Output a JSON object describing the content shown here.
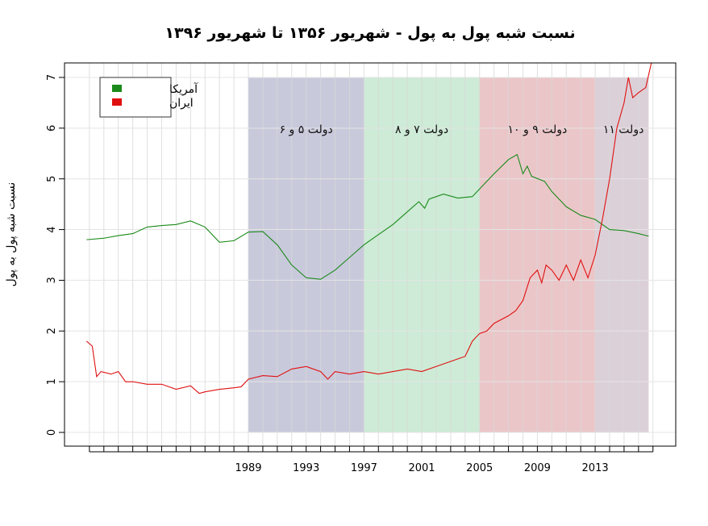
{
  "chart_data": {
    "type": "line",
    "title": "نسبت شبه پول به پول - شهریور ۱۳۵۶ تا شهریور ۱۳۹۶",
    "xlabel": "",
    "ylabel": "نسبت شبه پول به پول",
    "xlim": [
      1976.4,
      2018.6
    ],
    "ylim": [
      0,
      7
    ],
    "yticks": [
      0,
      1,
      2,
      3,
      4,
      5,
      6,
      7
    ],
    "xtick_labels": [
      "1989",
      "1993",
      "1997",
      "2001",
      "2005",
      "2009",
      "2013"
    ],
    "grid": true,
    "legend": {
      "placement": "top-left",
      "entries": [
        "آمریکا",
        "ایران"
      ]
    },
    "regions": [
      {
        "label": "دولت ۵ و ۶",
        "from": 1989,
        "to": 1997,
        "color": "#c9c9dc"
      },
      {
        "label": "دولت ۷ و ۸",
        "from": 1997,
        "to": 2005,
        "color": "#cdebd6"
      },
      {
        "label": "دولت ۹ و ۱۰",
        "from": 2005,
        "to": 2013,
        "color": "#ebc6c8"
      },
      {
        "label": "دولت ۱۱",
        "from": 2013,
        "to": 2016.7,
        "color": "#dcd0d8"
      }
    ],
    "series": [
      {
        "name": "آمریکا",
        "color": "#1a8a1a",
        "x": [
          1977.8,
          1979,
          1980,
          1981,
          1982,
          1983,
          1984,
          1985,
          1986,
          1987,
          1988,
          1989,
          1990,
          1991,
          1992,
          1993,
          1994,
          1995,
          1996,
          1997,
          1998,
          1999,
          2000,
          2000.8,
          2001.2,
          2001.5,
          2002.5,
          2003.5,
          2004.5,
          2005,
          2006,
          2007,
          2007.6,
          2008,
          2008.3,
          2008.6,
          2009.5,
          2010,
          2011,
          2012,
          2013,
          2014,
          2015,
          2016,
          2016.7
        ],
        "y": [
          3.8,
          3.83,
          3.88,
          3.92,
          4.05,
          4.08,
          4.1,
          4.17,
          4.05,
          3.75,
          3.78,
          3.95,
          3.96,
          3.7,
          3.3,
          3.05,
          3.02,
          3.2,
          3.45,
          3.7,
          3.9,
          4.1,
          4.35,
          4.55,
          4.42,
          4.6,
          4.7,
          4.62,
          4.65,
          4.8,
          5.1,
          5.38,
          5.48,
          5.1,
          5.25,
          5.05,
          4.95,
          4.75,
          4.45,
          4.28,
          4.2,
          4.0,
          3.98,
          3.92,
          3.87
        ]
      },
      {
        "name": "ایران",
        "color": "#e01010",
        "x": [
          1977.8,
          1978.2,
          1978.5,
          1978.8,
          1979.5,
          1980,
          1980.5,
          1981,
          1982,
          1983,
          1984,
          1985,
          1985.6,
          1986,
          1987,
          1988,
          1988.5,
          1989,
          1990,
          1991,
          1992,
          1993,
          1994,
          1994.5,
          1995,
          1996,
          1997,
          1998,
          1999,
          2000,
          2001,
          2002,
          2003,
          2004,
          2004.5,
          2005,
          2005.5,
          2006,
          2007,
          2007.5,
          2008,
          2008.5,
          2009,
          2009.3,
          2009.6,
          2010,
          2010.5,
          2011,
          2011.5,
          2012,
          2012.5,
          2013,
          2013.5,
          2014,
          2014.5,
          2015,
          2015.3,
          2015.6,
          2016,
          2016.5,
          2016.9
        ],
        "y": [
          1.8,
          1.7,
          1.1,
          1.2,
          1.15,
          1.2,
          1.0,
          1.0,
          0.95,
          0.95,
          0.85,
          0.92,
          0.77,
          0.8,
          0.85,
          0.88,
          0.9,
          1.05,
          1.12,
          1.1,
          1.25,
          1.3,
          1.2,
          1.05,
          1.2,
          1.15,
          1.2,
          1.15,
          1.2,
          1.25,
          1.2,
          1.3,
          1.4,
          1.5,
          1.8,
          1.95,
          2.0,
          2.15,
          2.3,
          2.4,
          2.6,
          3.05,
          3.2,
          2.95,
          3.3,
          3.2,
          3.0,
          3.3,
          3.0,
          3.4,
          3.05,
          3.5,
          4.2,
          5.0,
          6.0,
          6.5,
          7.0,
          6.6,
          6.7,
          6.8,
          7.3
        ]
      }
    ]
  }
}
